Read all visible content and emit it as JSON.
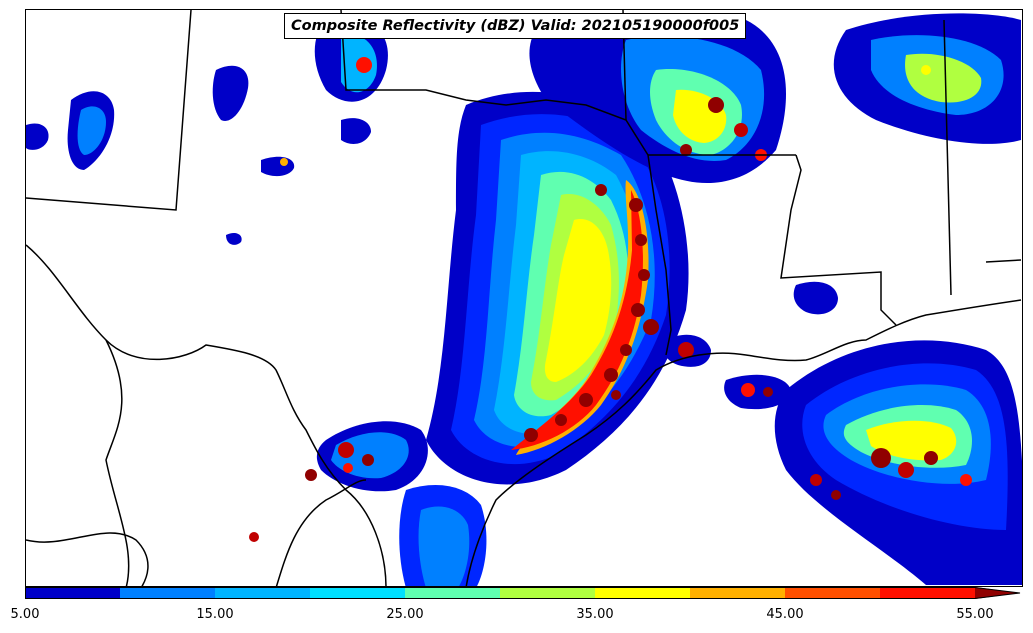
{
  "title": "Composite Reflectivity (dBZ) Valid: 202105190000f005",
  "colorbar": {
    "min": 5,
    "max": 55,
    "step": 5,
    "colors": [
      "#0000c8",
      "#0026ff",
      "#0080ff",
      "#00b4ff",
      "#00e0ff",
      "#60ffb0",
      "#b0ff40",
      "#ffff00",
      "#ffb000",
      "#ff5000",
      "#ff1000",
      "#c00000",
      "#900000"
    ],
    "tick_labels": [
      "5.00",
      "15.00",
      "25.00",
      "35.00",
      "45.00",
      "55.00"
    ],
    "extend": "max"
  }
}
